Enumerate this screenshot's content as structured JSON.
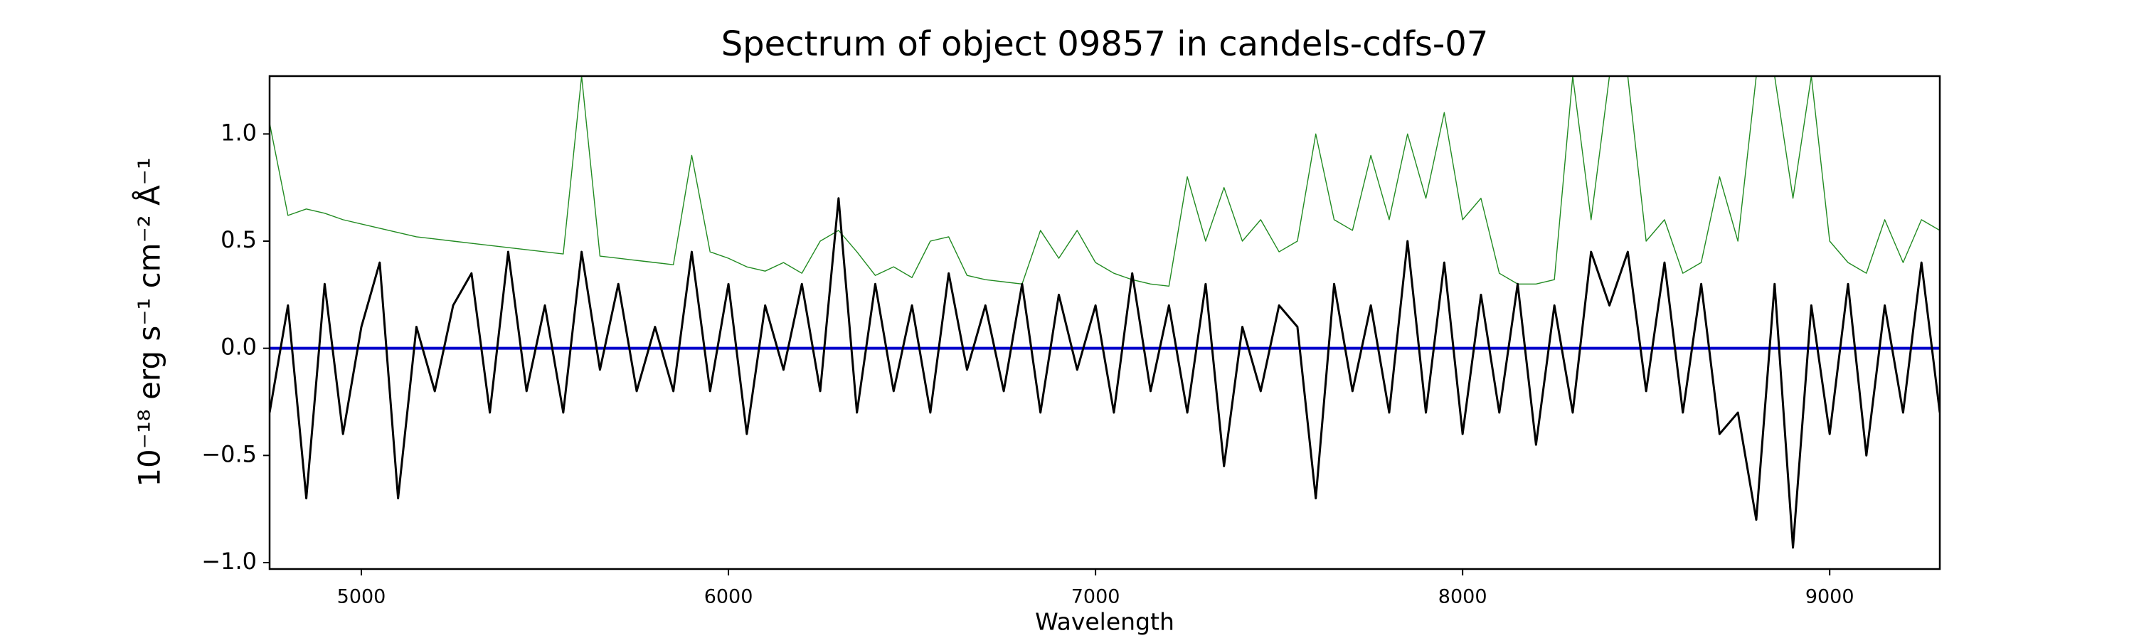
{
  "chart_data": {
    "type": "line",
    "title": "Spectrum of object 09857 in candels-cdfs-07",
    "xlabel": "Wavelength",
    "ylabel": "10⁻¹⁸ erg s⁻¹ cm⁻² Å⁻¹",
    "xlim": [
      4750,
      9300
    ],
    "ylim": [
      -1.03,
      1.27
    ],
    "xticks": [
      5000,
      6000,
      7000,
      8000,
      9000
    ],
    "yticks": [
      {
        "value": -1.0,
        "label": "−1.0"
      },
      {
        "value": -0.5,
        "label": "−0.5"
      },
      {
        "value": 0.0,
        "label": "0.0"
      },
      {
        "value": 0.5,
        "label": "0.5"
      },
      {
        "value": 1.0,
        "label": "1.0"
      }
    ],
    "grid": false,
    "x": [
      4750,
      4800,
      4850,
      4900,
      4950,
      5000,
      5050,
      5100,
      5150,
      5200,
      5250,
      5300,
      5350,
      5400,
      5450,
      5500,
      5550,
      5600,
      5650,
      5700,
      5750,
      5800,
      5850,
      5900,
      5950,
      6000,
      6050,
      6100,
      6150,
      6200,
      6250,
      6300,
      6350,
      6400,
      6450,
      6500,
      6550,
      6600,
      6650,
      6700,
      6750,
      6800,
      6850,
      6900,
      6950,
      7000,
      7050,
      7100,
      7150,
      7200,
      7250,
      7300,
      7350,
      7400,
      7450,
      7500,
      7550,
      7600,
      7650,
      7700,
      7750,
      7800,
      7850,
      7900,
      7950,
      8000,
      8050,
      8100,
      8150,
      8200,
      8250,
      8300,
      8350,
      8400,
      8450,
      8500,
      8550,
      8600,
      8650,
      8700,
      8750,
      8800,
      8850,
      8900,
      8950,
      9000,
      9050,
      9100,
      9150,
      9200,
      9250,
      9300
    ],
    "series": [
      {
        "color": "#228b22",
        "width": 1.4,
        "values": [
          1.05,
          0.62,
          0.65,
          0.63,
          0.6,
          0.58,
          0.56,
          0.54,
          0.52,
          0.51,
          0.5,
          0.49,
          0.48,
          0.47,
          0.46,
          0.45,
          0.44,
          1.27,
          0.43,
          0.42,
          0.41,
          0.4,
          0.39,
          0.9,
          0.45,
          0.42,
          0.38,
          0.36,
          0.4,
          0.35,
          0.5,
          0.55,
          0.45,
          0.34,
          0.38,
          0.33,
          0.5,
          0.52,
          0.34,
          0.32,
          0.31,
          0.3,
          0.55,
          0.42,
          0.55,
          0.4,
          0.35,
          0.32,
          0.3,
          0.29,
          0.8,
          0.5,
          0.75,
          0.5,
          0.6,
          0.45,
          0.5,
          1.0,
          0.6,
          0.55,
          0.9,
          0.6,
          1.0,
          0.7,
          1.1,
          0.6,
          0.7,
          0.35,
          0.3,
          0.3,
          0.32,
          1.27,
          0.6,
          1.27,
          1.27,
          0.5,
          0.6,
          0.35,
          0.4,
          0.8,
          0.5,
          1.27,
          1.27,
          0.7,
          1.27,
          0.5,
          0.4,
          0.35,
          0.6,
          0.4,
          0.6,
          0.55
        ]
      },
      {
        "color": "#0000cc",
        "width": 4,
        "values": [
          0,
          0,
          0,
          0,
          0,
          0,
          0,
          0,
          0,
          0,
          0,
          0,
          0,
          0,
          0,
          0,
          0,
          0,
          0,
          0,
          0,
          0,
          0,
          0,
          0,
          0,
          0,
          0,
          0,
          0,
          0,
          0,
          0,
          0,
          0,
          0,
          0,
          0,
          0,
          0,
          0,
          0,
          0,
          0,
          0,
          0,
          0,
          0,
          0,
          0,
          0,
          0,
          0,
          0,
          0,
          0,
          0,
          0,
          0,
          0,
          0,
          0,
          0,
          0,
          0,
          0,
          0,
          0,
          0,
          0,
          0,
          0,
          0,
          0,
          0,
          0,
          0,
          0,
          0,
          0,
          0,
          0,
          0,
          0,
          0,
          0,
          0,
          0,
          0,
          0,
          0,
          0
        ]
      },
      {
        "color": "#000000",
        "width": 3,
        "values": [
          -0.3,
          0.2,
          -0.7,
          0.3,
          -0.4,
          0.1,
          0.4,
          -0.7,
          0.1,
          -0.2,
          0.2,
          0.35,
          -0.3,
          0.45,
          -0.2,
          0.2,
          -0.3,
          0.45,
          -0.1,
          0.3,
          -0.2,
          0.1,
          -0.2,
          0.45,
          -0.2,
          0.3,
          -0.4,
          0.2,
          -0.1,
          0.3,
          -0.2,
          0.7,
          -0.3,
          0.3,
          -0.2,
          0.2,
          -0.3,
          0.35,
          -0.1,
          0.2,
          -0.2,
          0.3,
          -0.3,
          0.25,
          -0.1,
          0.2,
          -0.3,
          0.35,
          -0.2,
          0.2,
          -0.3,
          0.3,
          -0.55,
          0.1,
          -0.2,
          0.2,
          0.1,
          -0.7,
          0.3,
          -0.2,
          0.2,
          -0.3,
          0.5,
          -0.3,
          0.4,
          -0.4,
          0.25,
          -0.3,
          0.3,
          -0.45,
          0.2,
          -0.3,
          0.45,
          0.2,
          0.45,
          -0.2,
          0.4,
          -0.3,
          0.3,
          -0.4,
          -0.3,
          -0.8,
          0.3,
          -0.93,
          0.2,
          -0.4,
          0.3,
          -0.5,
          0.2,
          -0.3,
          0.4,
          -0.3
        ]
      }
    ]
  }
}
